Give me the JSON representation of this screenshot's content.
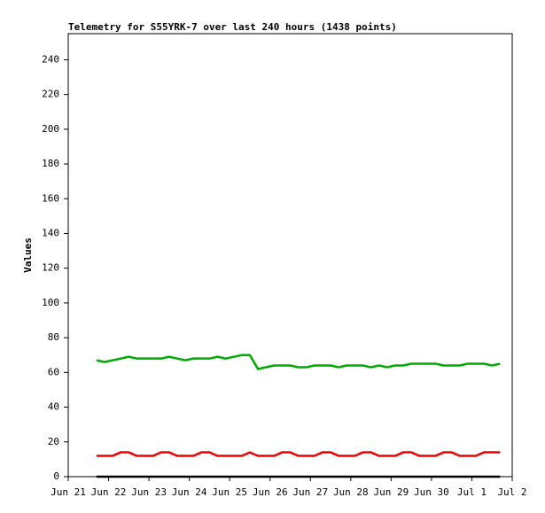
{
  "chart_data": {
    "type": "line",
    "title": "Telemetry for S55YRK-7 over last 240 hours (1438 points)",
    "y_label": "Values",
    "x": [
      0.7,
      0.9,
      1.1,
      1.3,
      1.5,
      1.7,
      1.9,
      2.1,
      2.3,
      2.5,
      2.7,
      2.9,
      3.1,
      3.3,
      3.5,
      3.7,
      3.9,
      4.1,
      4.3,
      4.5,
      4.7,
      4.9,
      5.1,
      5.3,
      5.5,
      5.7,
      5.9,
      6.1,
      6.3,
      6.5,
      6.7,
      6.9,
      7.1,
      7.3,
      7.5,
      7.7,
      7.9,
      8.1,
      8.3,
      8.5,
      8.7,
      8.9,
      9.1,
      9.3,
      9.5,
      9.7,
      9.9,
      10.1,
      10.3,
      10.5,
      10.7
    ],
    "series": [
      {
        "color": "#00aa00",
        "values": [
          67,
          66,
          67,
          68,
          69,
          68,
          68,
          68,
          68,
          69,
          68,
          67,
          68,
          68,
          68,
          69,
          68,
          69,
          70,
          70,
          62,
          63,
          64,
          64,
          64,
          63,
          63,
          64,
          64,
          64,
          63,
          64,
          64,
          64,
          63,
          64,
          63,
          64,
          64,
          65,
          65,
          65,
          65,
          64,
          64,
          64,
          65,
          65,
          65,
          64,
          65
        ]
      },
      {
        "color": "#ee0000",
        "values": [
          12,
          12,
          12,
          14,
          14,
          12,
          12,
          12,
          14,
          14,
          12,
          12,
          12,
          14,
          14,
          12,
          12,
          12,
          12,
          14,
          12,
          12,
          12,
          14,
          14,
          12,
          12,
          12,
          14,
          14,
          12,
          12,
          12,
          14,
          14,
          12,
          12,
          12,
          14,
          14,
          12,
          12,
          12,
          14,
          14,
          12,
          12,
          12,
          14,
          14,
          14
        ]
      },
      {
        "color": "#000000",
        "values": [
          0,
          0,
          0,
          0,
          0,
          0,
          0,
          0,
          0,
          0,
          0,
          0,
          0,
          0,
          0,
          0,
          0,
          0,
          0,
          0,
          0,
          0,
          0,
          0,
          0,
          0,
          0,
          0,
          0,
          0,
          0,
          0,
          0,
          0,
          0,
          0,
          0,
          0,
          0,
          0,
          0,
          0,
          0,
          0,
          0,
          0,
          0,
          0,
          0,
          0,
          0
        ]
      }
    ],
    "xlim": [
      0,
      11
    ],
    "xticks": [
      {
        "value": 0,
        "label": "Jun 21"
      },
      {
        "value": 1,
        "label": "Jun 22"
      },
      {
        "value": 2,
        "label": "Jun 23"
      },
      {
        "value": 3,
        "label": "Jun 24"
      },
      {
        "value": 4,
        "label": "Jun 25"
      },
      {
        "value": 5,
        "label": "Jun 26"
      },
      {
        "value": 6,
        "label": "Jun 27"
      },
      {
        "value": 7,
        "label": "Jun 28"
      },
      {
        "value": 8,
        "label": "Jun 29"
      },
      {
        "value": 9,
        "label": "Jun 30"
      },
      {
        "value": 10,
        "label": "Jul 1"
      },
      {
        "value": 11,
        "label": "Jul 2"
      }
    ],
    "ylim": [
      0,
      255
    ],
    "yticks": [
      0,
      20,
      40,
      60,
      80,
      100,
      120,
      140,
      160,
      180,
      200,
      220,
      240
    ]
  }
}
